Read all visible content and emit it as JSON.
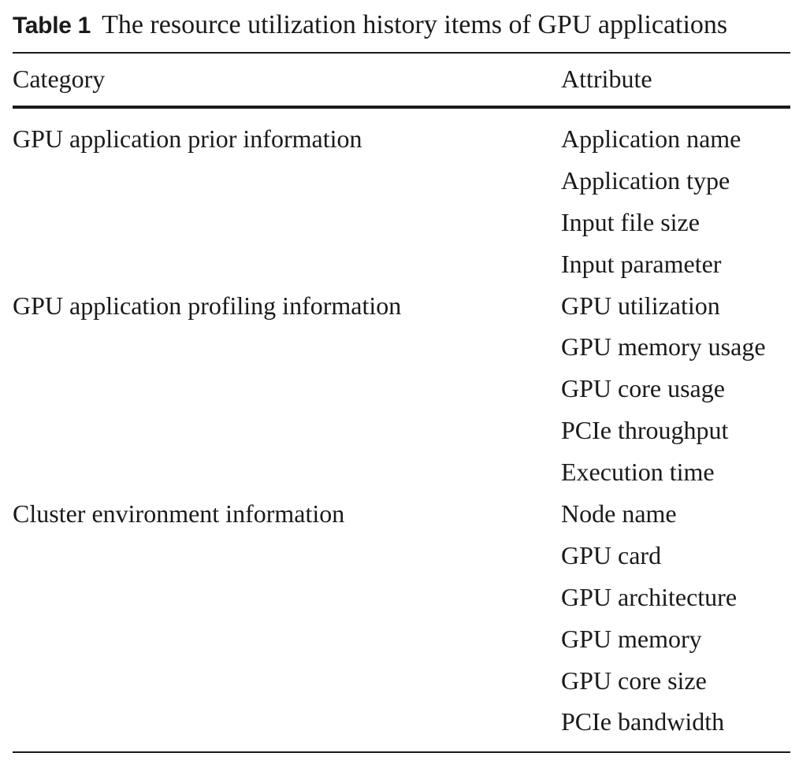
{
  "caption": {
    "label": "Table 1",
    "text": "The resource utilization history items of GPU applications"
  },
  "header": {
    "category": "Category",
    "attribute": "Attribute"
  },
  "rows": [
    {
      "category": "GPU application prior information",
      "attribute": "Application name"
    },
    {
      "category": "",
      "attribute": "Application type"
    },
    {
      "category": "",
      "attribute": "Input file size"
    },
    {
      "category": "",
      "attribute": "Input parameter"
    },
    {
      "category": "GPU application profiling information",
      "attribute": "GPU utilization"
    },
    {
      "category": "",
      "attribute": "GPU memory usage"
    },
    {
      "category": "",
      "attribute": "GPU core usage"
    },
    {
      "category": "",
      "attribute": "PCIe throughput"
    },
    {
      "category": "",
      "attribute": "Execution time"
    },
    {
      "category": "Cluster environment information",
      "attribute": "Node name"
    },
    {
      "category": "",
      "attribute": "GPU card"
    },
    {
      "category": "",
      "attribute": "GPU architecture"
    },
    {
      "category": "",
      "attribute": "GPU memory"
    },
    {
      "category": "",
      "attribute": "GPU core size"
    },
    {
      "category": "",
      "attribute": "PCIe bandwidth"
    }
  ]
}
